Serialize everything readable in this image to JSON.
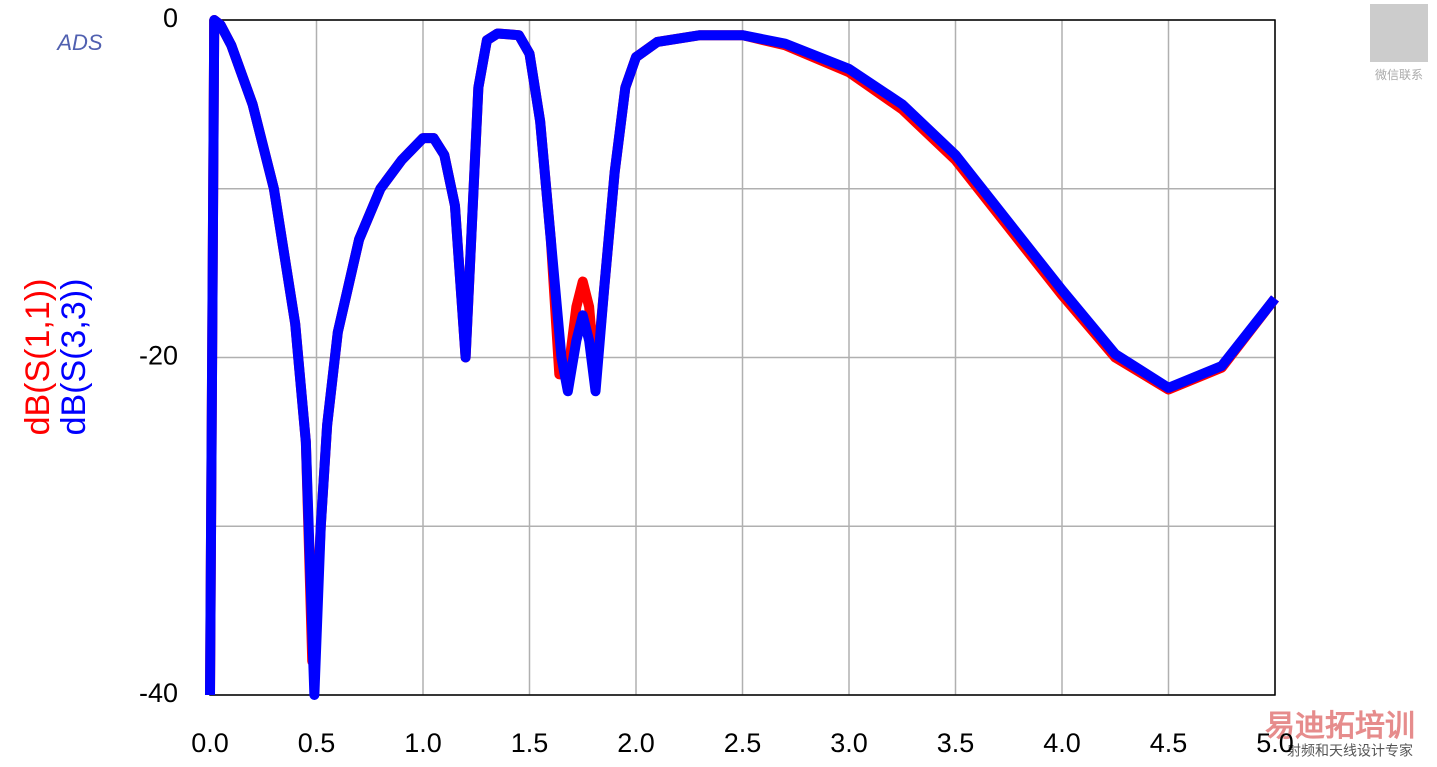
{
  "chart_data": {
    "type": "line",
    "brand": "ADS",
    "series": [
      {
        "name": "dB(S(1,1))",
        "color": "#ff0000",
        "x": [
          0,
          0.02,
          0.05,
          0.1,
          0.2,
          0.3,
          0.4,
          0.45,
          0.48,
          0.5,
          0.52,
          0.55,
          0.6,
          0.7,
          0.8,
          0.9,
          1.0,
          1.05,
          1.1,
          1.15,
          1.2,
          1.23,
          1.26,
          1.3,
          1.35,
          1.45,
          1.5,
          1.55,
          1.6,
          1.64,
          1.68,
          1.72,
          1.75,
          1.78,
          1.81,
          1.85,
          1.9,
          1.95,
          2.0,
          2.1,
          2.3,
          2.5,
          2.7,
          3.0,
          3.25,
          3.5,
          3.75,
          4.0,
          4.25,
          4.5,
          4.75,
          5.0
        ],
        "values": [
          -40,
          0,
          -0.3,
          -1.5,
          -5,
          -10,
          -18,
          -25,
          -38,
          -35,
          -30,
          -24,
          -18.5,
          -13,
          -10,
          -8.3,
          -7,
          -7,
          -8,
          -11,
          -20,
          -12,
          -4,
          -1.2,
          -0.8,
          -0.9,
          -2,
          -6,
          -13,
          -21,
          -21,
          -17,
          -15.5,
          -17,
          -21.5,
          -16,
          -9,
          -4,
          -2.2,
          -1.3,
          -0.9,
          -0.9,
          -1.5,
          -3.1,
          -5.3,
          -8.3,
          -12.3,
          -16.3,
          -20,
          -21.9,
          -20.6,
          -16.5
        ]
      },
      {
        "name": "dB(S(3,3))",
        "color": "#0000ff",
        "x": [
          0,
          0.02,
          0.05,
          0.1,
          0.2,
          0.3,
          0.4,
          0.45,
          0.49,
          0.52,
          0.55,
          0.6,
          0.7,
          0.8,
          0.9,
          1.0,
          1.05,
          1.1,
          1.15,
          1.2,
          1.23,
          1.26,
          1.3,
          1.35,
          1.45,
          1.5,
          1.55,
          1.6,
          1.65,
          1.68,
          1.72,
          1.75,
          1.78,
          1.81,
          1.85,
          1.9,
          1.95,
          2.0,
          2.1,
          2.3,
          2.5,
          2.7,
          3.0,
          3.25,
          3.5,
          3.75,
          4.0,
          4.25,
          4.5,
          4.75,
          5.0
        ],
        "values": [
          -40,
          0,
          -0.3,
          -1.5,
          -5,
          -10,
          -18,
          -25,
          -40,
          -30,
          -24,
          -18.5,
          -13,
          -10,
          -8.3,
          -7,
          -7,
          -8,
          -11,
          -20,
          -12,
          -4,
          -1.2,
          -0.8,
          -0.9,
          -2,
          -6,
          -13,
          -20,
          -22,
          -19,
          -17.5,
          -19,
          -22,
          -16,
          -9,
          -4,
          -2.2,
          -1.3,
          -0.9,
          -0.9,
          -1.4,
          -2.9,
          -5,
          -8,
          -12,
          -16,
          -19.8,
          -21.8,
          -20.5,
          -16.5
        ]
      }
    ],
    "xlim": [
      0,
      5
    ],
    "ylim": [
      -40,
      0
    ],
    "xticks": [
      {
        "value": 0,
        "label": "0.0"
      },
      0.5,
      {
        "value": 1,
        "label": "1.0"
      },
      1.5,
      {
        "value": 2,
        "label": "2.0"
      },
      2.5,
      {
        "value": 3,
        "label": "3.0"
      },
      3.5,
      {
        "value": 4,
        "label": "4.0"
      },
      4.5,
      {
        "value": 5,
        "label": "5.0"
      }
    ],
    "yticks": [
      0,
      {
        "value": -10,
        "label": null
      },
      -20,
      {
        "value": -30,
        "label": null
      },
      -40
    ],
    "grid": true
  },
  "watermark": {
    "qr_caption": "微信联系",
    "brand": "易迪拓培训",
    "slogan": "射频和天线设计专家"
  }
}
